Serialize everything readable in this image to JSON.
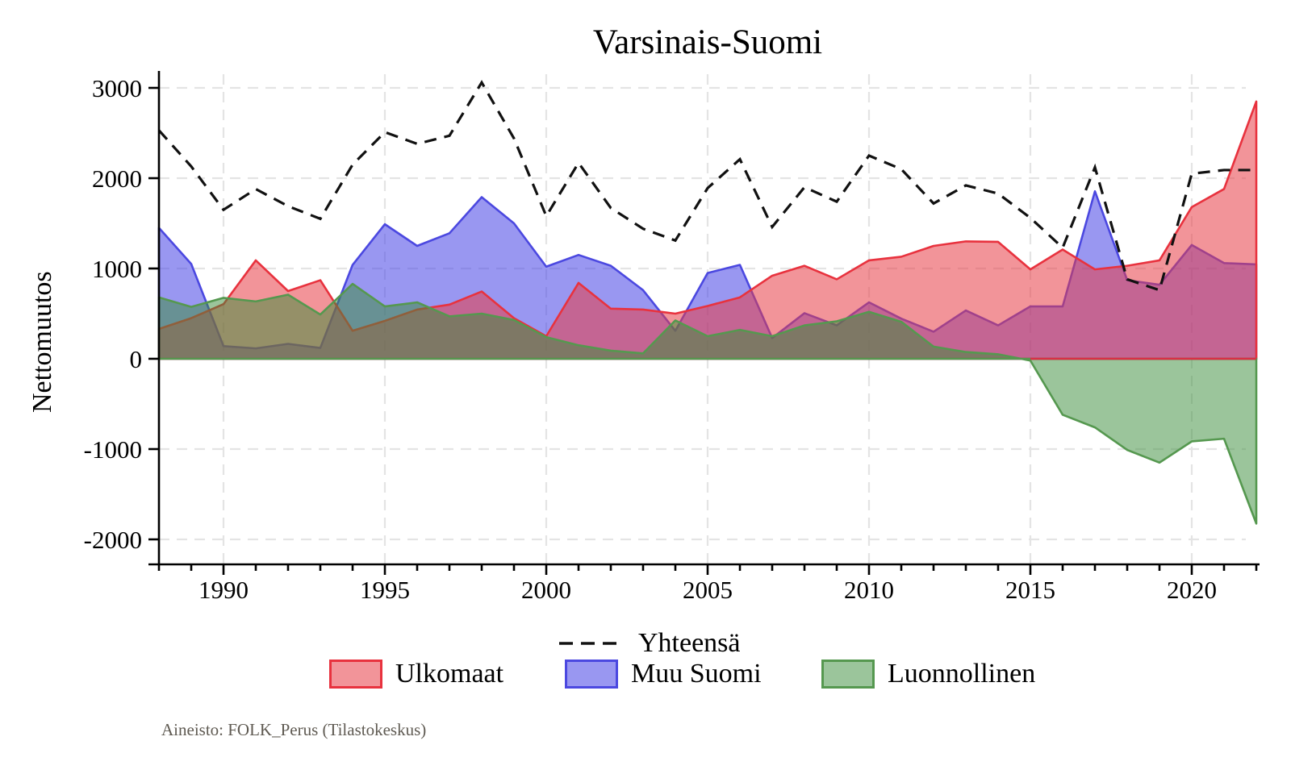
{
  "title": "Varsinais-Suomi",
  "y_axis": {
    "label": "Nettomuutos",
    "ticks": [
      -2000,
      -1000,
      0,
      1000,
      2000,
      3000
    ]
  },
  "x_axis": {
    "major_ticks": [
      1990,
      1995,
      2000,
      2005,
      2010,
      2015,
      2020
    ]
  },
  "footer": "Aineisto: FOLK_Perus (Tilastokeskus)",
  "legend": {
    "total": {
      "label": "Yhteensä",
      "color": "#111111"
    },
    "foreign": {
      "label": "Ulkomaat",
      "fill": "rgba(232,60,70,0.55)",
      "border": "#e8323e"
    },
    "finland": {
      "label": "Muu Suomi",
      "fill": "rgba(70,65,230,0.55)",
      "border": "#4b48e0"
    },
    "natural": {
      "label": "Luonnollinen",
      "fill": "rgba(55,140,55,0.50)",
      "border": "#55984f"
    }
  },
  "chart_data": {
    "type": "area",
    "x": [
      1988,
      1989,
      1990,
      1991,
      1992,
      1993,
      1994,
      1995,
      1996,
      1997,
      1998,
      1999,
      2000,
      2001,
      2002,
      2003,
      2004,
      2005,
      2006,
      2007,
      2008,
      2009,
      2010,
      2011,
      2012,
      2013,
      2014,
      2015,
      2016,
      2017,
      2018,
      2019,
      2020,
      2021,
      2022
    ],
    "xlim": [
      1988,
      2022
    ],
    "ylim": [
      -2270,
      3170
    ],
    "grid": true,
    "series": [
      {
        "name": "Muu Suomi",
        "style": "area",
        "fill": "#4641e6",
        "fill_opacity": 0.55,
        "stroke": "#4b48e0",
        "values": [
          1450,
          1050,
          140,
          115,
          165,
          120,
          1040,
          1490,
          1250,
          1390,
          1790,
          1500,
          1020,
          1150,
          1030,
          760,
          310,
          950,
          1040,
          230,
          505,
          370,
          625,
          445,
          300,
          535,
          370,
          580,
          580,
          1855,
          870,
          820,
          1260,
          1060,
          1045
        ]
      },
      {
        "name": "Ulkomaat",
        "style": "area",
        "fill": "#e83c46",
        "fill_opacity": 0.55,
        "stroke": "#e8323e",
        "values": [
          330,
          450,
          605,
          1090,
          750,
          870,
          310,
          420,
          545,
          600,
          745,
          450,
          250,
          840,
          555,
          545,
          500,
          585,
          680,
          920,
          1030,
          880,
          1090,
          1130,
          1250,
          1300,
          1295,
          990,
          1210,
          990,
          1030,
          1090,
          1680,
          1880,
          2850
        ]
      },
      {
        "name": "Luonnollinen",
        "style": "area",
        "fill": "#378c37",
        "fill_opacity": 0.5,
        "stroke": "#55984f",
        "values": [
          680,
          575,
          675,
          635,
          710,
          490,
          830,
          580,
          625,
          470,
          500,
          430,
          240,
          150,
          90,
          60,
          425,
          250,
          320,
          250,
          370,
          415,
          520,
          410,
          135,
          75,
          50,
          -20,
          -620,
          -760,
          -1010,
          -1150,
          -915,
          -885,
          -1825
        ]
      },
      {
        "name": "Yhteensä",
        "style": "dashed-line",
        "stroke": "#111111",
        "values": [
          2530,
          2130,
          1650,
          1880,
          1690,
          1550,
          2150,
          2510,
          2380,
          2470,
          3060,
          2440,
          1580,
          2170,
          1670,
          1440,
          1310,
          1890,
          2210,
          1460,
          1900,
          1740,
          2250,
          2100,
          1720,
          1920,
          1830,
          1560,
          1230,
          2120,
          880,
          760,
          2050,
          2090,
          2090
        ]
      }
    ],
    "legend_position": "bottom"
  }
}
